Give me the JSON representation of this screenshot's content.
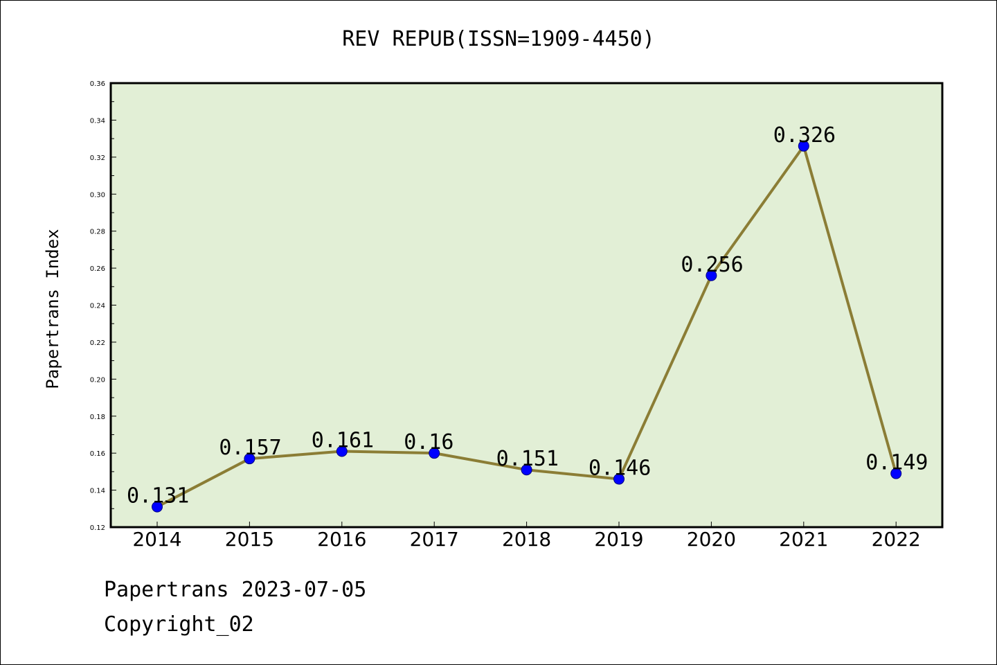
{
  "chart_data": {
    "type": "line",
    "title": "REV REPUB(ISSN=1909-4450)",
    "ylabel": "Papertrans Index",
    "xlabel": "",
    "categories": [
      "2014",
      "2015",
      "2016",
      "2017",
      "2018",
      "2019",
      "2020",
      "2021",
      "2022"
    ],
    "values": [
      0.131,
      0.157,
      0.161,
      0.16,
      0.151,
      0.146,
      0.256,
      0.326,
      0.149
    ],
    "data_labels": [
      "0.131",
      "0.157",
      "0.161",
      "0.16",
      "0.151",
      "0.146",
      "0.256",
      "0.326",
      "0.149"
    ],
    "ylim": [
      0.12,
      0.36
    ],
    "yticks": [
      "0.12",
      "0.14",
      "0.16",
      "0.18",
      "0.20",
      "0.22",
      "0.24",
      "0.26",
      "0.28",
      "0.30",
      "0.32",
      "0.34",
      "0.36"
    ],
    "grid": false,
    "legend": "none",
    "colors": {
      "plot_background": "#e2efd6",
      "line": "#8b7d35",
      "marker": "#0000ff"
    }
  },
  "footer": {
    "date_line": "Papertrans 2023-07-05",
    "copyright_line": "Copyright_02"
  }
}
